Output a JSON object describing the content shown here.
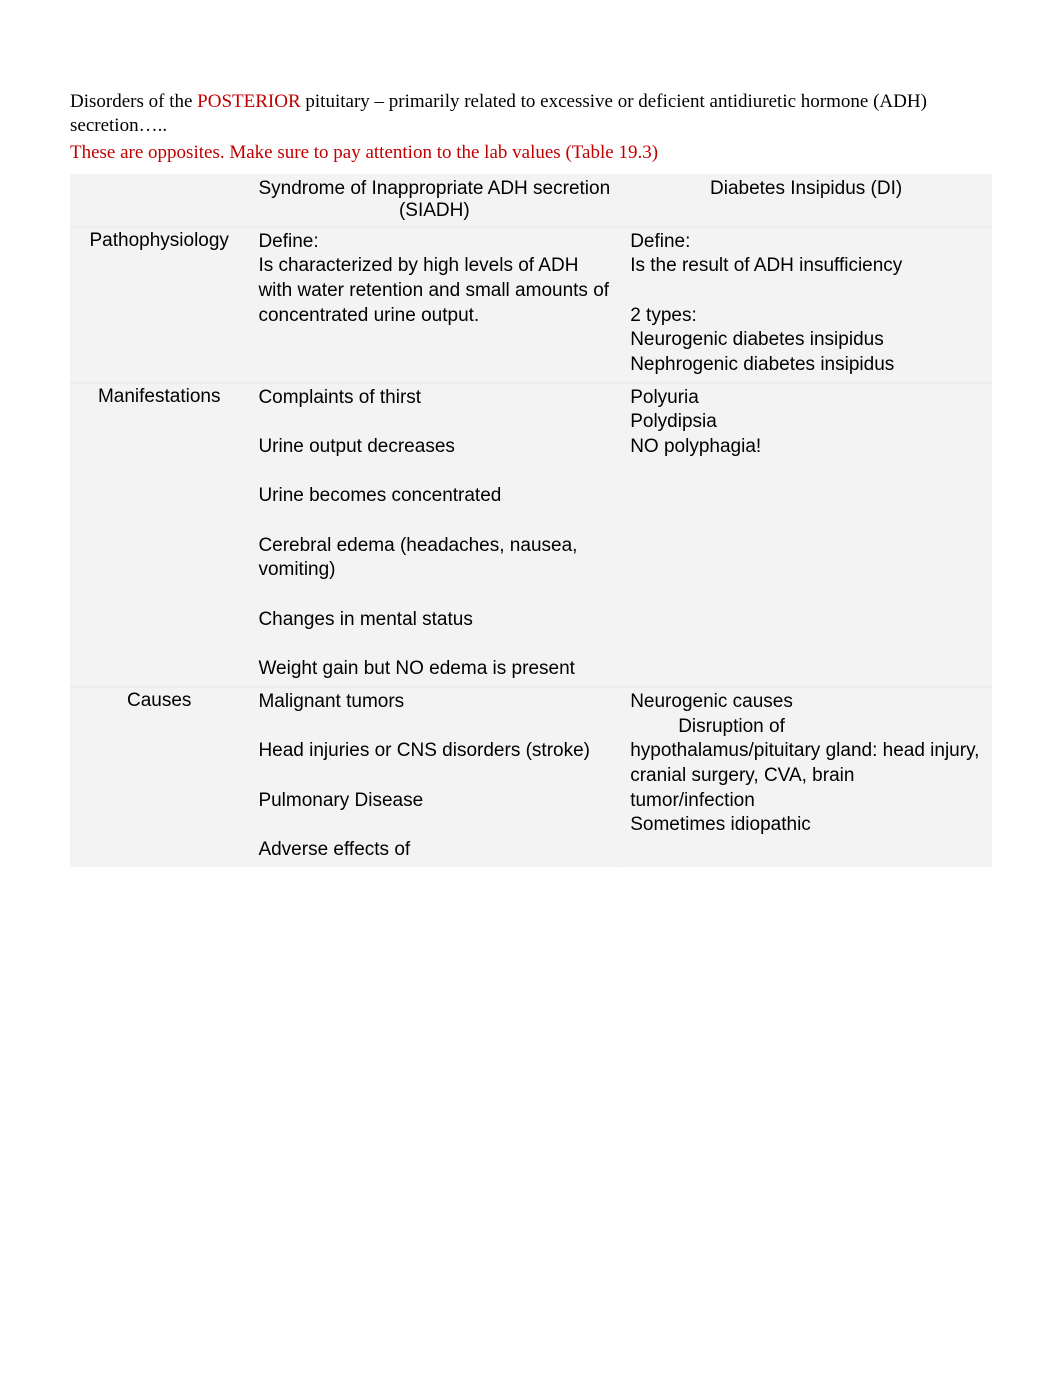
{
  "intro": {
    "prefix": "Disorders of the ",
    "posterior": "POSTERIOR",
    "middle": " pituitary – primarily related to excessive or deficient antidiuretic hormone (ADH) secretion…..",
    "note": "These are opposites.  Make sure to pay attention to the lab values (Table 19.3)"
  },
  "table": {
    "header": {
      "blank": "",
      "col1": "Syndrome of Inappropriate ADH secretion (SIADH)",
      "col2": "Diabetes Insipidus (DI)"
    },
    "rows": {
      "pathophysiology": {
        "label": "Pathophysiology",
        "siadh": "Define:\nIs characterized by high levels of ADH with water retention and small amounts of concentrated urine output.",
        "di": "Define:\nIs the result of ADH insufficiency\n\n2 types:\nNeurogenic diabetes insipidus\nNephrogenic diabetes insipidus\n"
      },
      "manifestations": {
        "label": "Manifestations",
        "siadh": "Complaints of thirst\n\nUrine output decreases\n\nUrine becomes concentrated\n\nCerebral edema (headaches, nausea, vomiting)\n\nChanges in mental status\n\nWeight gain but NO edema is present",
        "di": "Polyuria\nPolydipsia\nNO polyphagia!"
      },
      "causes": {
        "label": "Causes",
        "siadh": "Malignant tumors\n\nHead injuries or CNS disorders (stroke)\n\nPulmonary Disease\n\nAdverse effects of",
        "di_line1": "Neurogenic causes",
        "di_indent": "Disruption of",
        "di_rest": "hypothalamus/pituitary gland: head injury, cranial surgery, CVA, brain tumor/infection\nSometimes idiopathic"
      }
    }
  },
  "colors": {
    "red": "#c00000",
    "black": "#000000",
    "tableBg": "#f3f3f3",
    "pageBg": "#ffffff"
  }
}
